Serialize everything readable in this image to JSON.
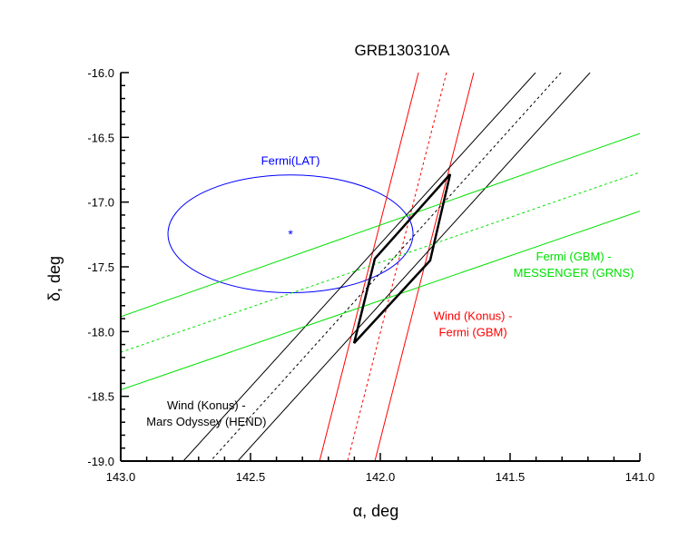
{
  "chart_data": {
    "type": "line",
    "title": "GRB130310A",
    "xlabel": "α, deg",
    "ylabel": "δ, deg",
    "xlim": [
      143.0,
      141.0
    ],
    "ylim": [
      -19.0,
      -16.0
    ],
    "x_ticks": [
      "143.0",
      "142.5",
      "142.0",
      "141.5",
      "141.0"
    ],
    "x_tick_values": [
      143.0,
      142.5,
      142.0,
      141.5,
      141.0
    ],
    "y_ticks": [
      "-16.0",
      "-16.5",
      "-17.0",
      "-17.5",
      "-18.0",
      "-18.5",
      "-19.0"
    ],
    "y_tick_values": [
      -16.0,
      -16.5,
      -17.0,
      -17.5,
      -18.0,
      -18.5,
      -19.0
    ],
    "minor_tick_step": 0.1,
    "grid": false,
    "colors": {
      "axis": "#000000",
      "red": "#ff0000",
      "green": "#00e000",
      "blue": "#0000ff",
      "black": "#000000"
    },
    "series": [
      {
        "name": "Wind (Konus) - Fermi (GBM) left",
        "color": "#ff0000",
        "dash": false,
        "points": [
          [
            141.853,
            -16.0
          ],
          [
            142.234,
            -19.0
          ]
        ]
      },
      {
        "name": "Wind (Konus) - Fermi (GBM) center",
        "color": "#ff0000",
        "dash": true,
        "points": [
          [
            141.745,
            -16.0
          ],
          [
            142.126,
            -19.0
          ]
        ]
      },
      {
        "name": "Wind (Konus) - Fermi (GBM) right",
        "color": "#ff0000",
        "dash": false,
        "points": [
          [
            141.64,
            -16.0
          ],
          [
            142.021,
            -19.0
          ]
        ]
      },
      {
        "name": "Wind (Konus) - Mars Odyssey (HEND) left",
        "color": "#000000",
        "dash": false,
        "points": [
          [
            141.402,
            -16.0
          ],
          [
            142.759,
            -19.0
          ]
        ]
      },
      {
        "name": "Wind (Konus) - Mars Odyssey (HEND) center",
        "color": "#000000",
        "dash": true,
        "points": [
          [
            141.304,
            -16.0
          ],
          [
            142.654,
            -19.0
          ]
        ]
      },
      {
        "name": "Wind (Konus) - Mars Odyssey (HEND) right",
        "color": "#000000",
        "dash": false,
        "points": [
          [
            141.192,
            -16.0
          ],
          [
            142.549,
            -19.0
          ]
        ]
      },
      {
        "name": "Fermi (GBM) - MESSENGER (GRNS) upper",
        "color": "#00e000",
        "dash": false,
        "points": [
          [
            143.0,
            -17.885
          ],
          [
            141.0,
            -16.47
          ]
        ]
      },
      {
        "name": "Fermi (GBM) - MESSENGER (GRNS) center",
        "color": "#00e000",
        "dash": true,
        "points": [
          [
            143.0,
            -18.16
          ],
          [
            141.0,
            -16.77
          ]
        ]
      },
      {
        "name": "Fermi (GBM) - MESSENGER (GRNS) lower",
        "color": "#00e000",
        "dash": false,
        "points": [
          [
            143.0,
            -18.45
          ],
          [
            141.0,
            -17.07
          ]
        ]
      }
    ],
    "error_box": {
      "name": "IPN error box",
      "color": "#000000",
      "points": [
        [
          141.731,
          -16.785
        ],
        [
          141.808,
          -17.451
        ],
        [
          142.101,
          -18.089
        ],
        [
          142.021,
          -17.437
        ]
      ]
    },
    "ellipse": {
      "name": "Fermi(LAT)",
      "color": "#0000ff",
      "center": [
        142.346,
        -17.245
      ],
      "semi_axis_alpha": 0.472,
      "semi_axis_delta": 0.455
    },
    "marker": {
      "name": "Fermi(LAT) position",
      "symbol": "*",
      "at": [
        142.346,
        -17.24
      ]
    },
    "annotations": [
      {
        "lines": [
          "Fermi(LAT)"
        ],
        "color": "#0000ff",
        "at": [
          142.346,
          -16.71
        ]
      },
      {
        "lines": [
          "Fermi (GBM) -",
          "MESSENGER (GRNS)"
        ],
        "color": "#00e000",
        "at": [
          141.255,
          -17.45
        ]
      },
      {
        "lines": [
          "Wind (Konus) -",
          "Fermi (GBM)"
        ],
        "color": "#ff0000",
        "at": [
          141.643,
          -17.91
        ]
      },
      {
        "lines": [
          "Wind (Konus) -",
          "Mars Odyssey (HEND)"
        ],
        "color": "#000000",
        "at": [
          142.67,
          -18.6
        ]
      }
    ]
  }
}
